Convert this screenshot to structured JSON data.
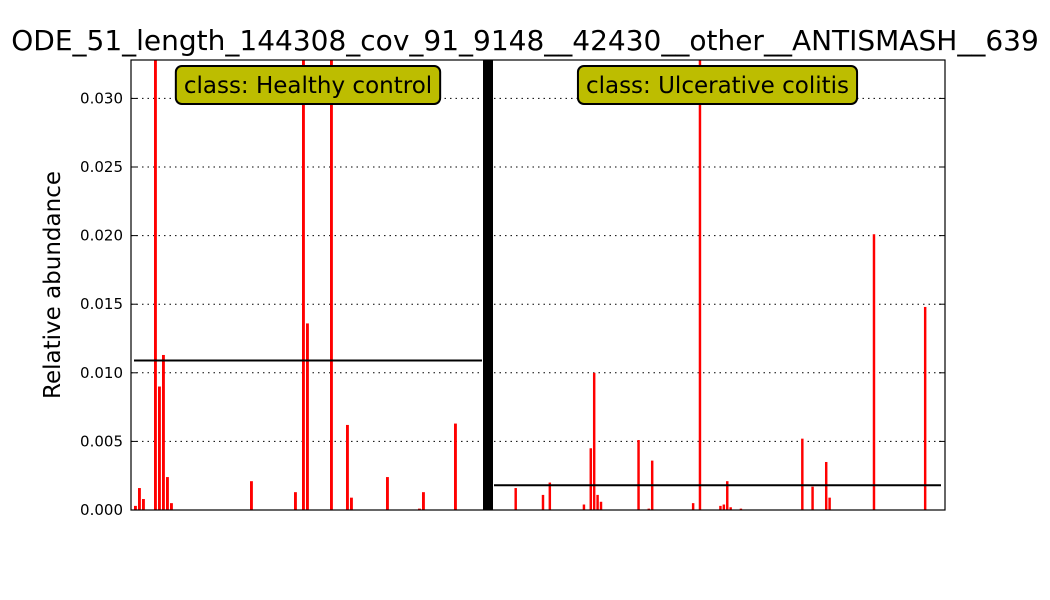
{
  "chart_data": {
    "type": "bar",
    "title": "ODE_51_length_144308_cov_91_9148__42430__other__ANTISMASH__639",
    "ylabel": "Relative abundance",
    "xlabel": "",
    "ylim": [
      0,
      0.0328
    ],
    "yticks": [
      "0.000",
      "0.005",
      "0.010",
      "0.015",
      "0.020",
      "0.025",
      "0.030"
    ],
    "ytick_values": [
      0,
      0.005,
      0.01,
      0.015,
      0.02,
      0.025,
      0.03
    ],
    "grid": "horizontal dotted",
    "bar_color": "#ff0000",
    "mean_line_color": "#000000",
    "box_color": "#bdbd00",
    "groups": [
      {
        "label": "class: Healthy control",
        "mean": 0.0109,
        "values": [
          0.0003,
          0.0016,
          0.0008,
          0,
          0,
          0.033,
          0.009,
          0.0113,
          0.0024,
          0.0005,
          0,
          0,
          0,
          0,
          0,
          0,
          0,
          0,
          0,
          0,
          0,
          0,
          0,
          0,
          0,
          0,
          0,
          0,
          0,
          0.0021,
          0,
          0,
          0,
          0,
          0,
          0,
          0,
          0,
          0,
          0,
          0.0013,
          0,
          0.033,
          0.0136,
          0,
          0,
          0,
          0,
          0,
          0.033,
          0,
          0,
          0,
          0.0062,
          0.0009,
          0,
          0,
          0,
          0,
          0,
          0,
          0,
          0,
          0.0024,
          0,
          0,
          0,
          0,
          0,
          0,
          0,
          0.0001,
          0.0013,
          0,
          0,
          0,
          0,
          0,
          0,
          0,
          0.0063,
          0,
          0,
          0,
          0,
          0,
          0
        ]
      },
      {
        "label": "class: Ulcerative colitis",
        "mean": 0.0018,
        "values": [
          0,
          0,
          0,
          0,
          0,
          0,
          0.0016,
          0,
          0,
          0,
          0,
          0,
          0,
          0,
          0.0011,
          0,
          0.002,
          0,
          0,
          0,
          0,
          0,
          0,
          0,
          0,
          0,
          0.0004,
          0,
          0.0045,
          0.01,
          0.0011,
          0.0006,
          0,
          0,
          0,
          0,
          0,
          0,
          0,
          0,
          0,
          0,
          0.0051,
          0,
          0,
          0.0001,
          0.0036,
          0,
          0,
          0,
          0,
          0,
          0,
          0,
          0,
          0,
          0,
          0,
          0.0005,
          0,
          0.033,
          0,
          0,
          0,
          0,
          0,
          0.0003,
          0.0004,
          0.0021,
          0.0002,
          0,
          0,
          0.0001,
          0,
          0,
          0,
          0,
          0,
          0,
          0,
          0,
          0,
          0,
          0,
          0,
          0,
          0,
          0,
          0,
          0,
          0.0052,
          0,
          0,
          0.0017,
          0,
          0,
          0,
          0.0035,
          0.0009,
          0,
          0,
          0,
          0,
          0,
          0,
          0,
          0,
          0,
          0,
          0,
          0,
          0.0201,
          0,
          0,
          0,
          0,
          0,
          0,
          0,
          0,
          0,
          0,
          0,
          0,
          0,
          0,
          0.0148,
          0,
          0,
          0,
          0
        ]
      }
    ]
  }
}
